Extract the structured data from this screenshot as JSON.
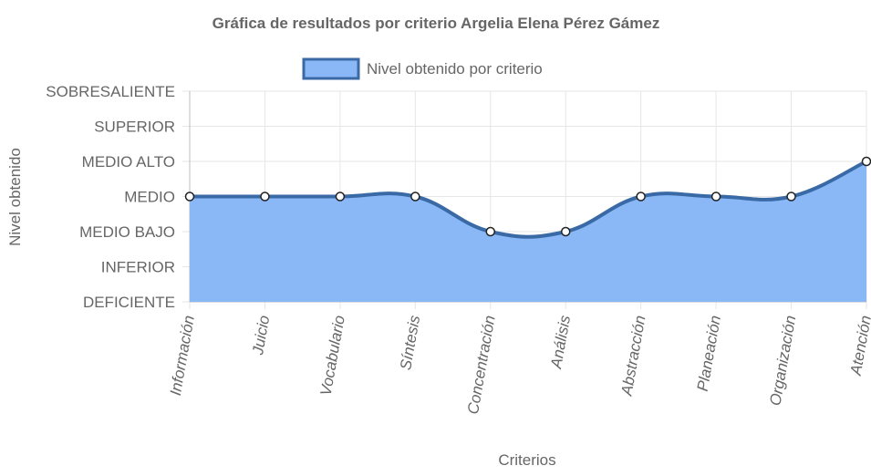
{
  "chart_data": {
    "type": "area",
    "title": "Gráfica de resultados por criterio Argelia Elena Pérez Gámez",
    "xlabel": "Criterios",
    "ylabel": "Nivel obtenido",
    "categories": [
      "Información",
      "Juicio",
      "Vocabulario",
      "Síntesis",
      "Concentración",
      "Análisis",
      "Abstracción",
      "Planeación",
      "Organización",
      "Atención"
    ],
    "y_levels": [
      "DEFICIENTE",
      "INFERIOR",
      "MEDIO BAJO",
      "MEDIO",
      "MEDIO ALTO",
      "SUPERIOR",
      "SOBRESALIENTE"
    ],
    "ylim": [
      0,
      6
    ],
    "series": [
      {
        "name": "Nivel obtenido por criterio",
        "values": [
          3,
          3,
          3,
          3,
          2,
          2,
          3,
          3,
          3,
          4
        ]
      }
    ],
    "legend_position": "top",
    "grid": true,
    "colors": {
      "fill": "#8ab8f7",
      "line": "#3a6aa6",
      "grid": "#e6e6e6",
      "text": "#666666"
    }
  }
}
